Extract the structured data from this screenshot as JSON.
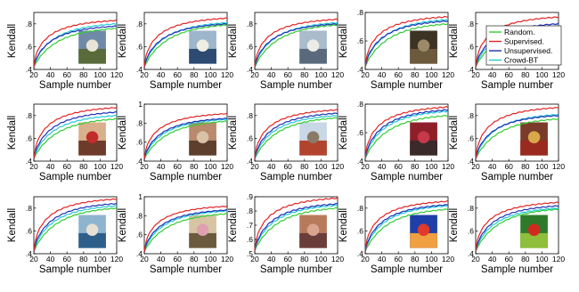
{
  "figure": {
    "legend_entries": [
      {
        "name": "Random.",
        "color": "#33cc33"
      },
      {
        "name": "Supervised.",
        "color": "#e32424"
      },
      {
        "name": "Unsupervised.",
        "color": "#1f2fb8"
      },
      {
        "name": "Crowd-BT",
        "color": "#22c9d6"
      }
    ]
  },
  "chart_data": [
    {
      "type": "line",
      "xlabel": "Sample number",
      "ylabel": "Kendall",
      "xlim": [
        20,
        120
      ],
      "ylim": [
        0.4,
        0.9
      ],
      "xticks": [
        20,
        40,
        60,
        80,
        100,
        120
      ],
      "yticks": [
        0.4,
        0.6,
        0.8
      ],
      "thumbnail": "lighthouse",
      "endpoints": {
        "Random.": 0.76,
        "Supervised.": 0.83,
        "Unsupervised.": 0.78,
        "Crowd-BT": 0.8
      }
    },
    {
      "type": "line",
      "xlabel": "Sample number",
      "ylabel": "Kendall",
      "xlim": [
        20,
        120
      ],
      "ylim": [
        0.4,
        0.9
      ],
      "xticks": [
        20,
        40,
        60,
        80,
        100,
        120
      ],
      "yticks": [
        0.4,
        0.6,
        0.8
      ],
      "thumbnail": "sailboats",
      "endpoints": {
        "Random.": 0.79,
        "Supervised.": 0.85,
        "Unsupervised.": 0.8,
        "Crowd-BT": 0.81
      }
    },
    {
      "type": "line",
      "xlabel": "Sample number",
      "ylabel": "Kendall",
      "xlim": [
        20,
        120
      ],
      "ylim": [
        0.4,
        0.9
      ],
      "xticks": [
        20,
        40,
        60,
        80,
        100,
        120
      ],
      "yticks": [
        0.4,
        0.6,
        0.8
      ],
      "thumbnail": "sailboat",
      "endpoints": {
        "Random.": 0.79,
        "Supervised.": 0.84,
        "Unsupervised.": 0.8,
        "Crowd-BT": 0.81
      }
    },
    {
      "type": "line",
      "xlabel": "Sample number",
      "ylabel": "Kendall",
      "xlim": [
        20,
        120
      ],
      "ylim": [
        0.4,
        0.8
      ],
      "xticks": [
        20,
        40,
        60,
        80,
        100,
        120
      ],
      "yticks": [
        0.4,
        0.6,
        0.8
      ],
      "thumbnail": "statue",
      "endpoints": {
        "Random.": 0.72,
        "Supervised.": 0.77,
        "Unsupervised.": 0.74,
        "Crowd-BT": 0.75
      }
    },
    {
      "type": "line",
      "xlabel": "Sample number",
      "ylabel": "Kendall",
      "xlim": [
        20,
        120
      ],
      "ylim": [
        0.4,
        0.9
      ],
      "xticks": [
        20,
        40,
        60,
        80,
        100,
        120
      ],
      "yticks": [
        0.4,
        0.6,
        0.8
      ],
      "thumbnail": "painting",
      "endpoints": {
        "Random.": 0.77,
        "Supervised.": 0.86,
        "Unsupervised.": 0.8,
        "Crowd-BT": 0.78
      }
    },
    {
      "type": "line",
      "xlabel": "Sample number",
      "ylabel": "Kendall",
      "xlim": [
        20,
        120
      ],
      "ylim": [
        0.4,
        0.9
      ],
      "xticks": [
        20,
        40,
        60,
        80,
        100,
        120
      ],
      "yticks": [
        0.4,
        0.6,
        0.8
      ],
      "thumbnail": "girl in red",
      "endpoints": {
        "Random.": 0.77,
        "Supervised.": 0.87,
        "Unsupervised.": 0.83,
        "Crowd-BT": 0.8
      }
    },
    {
      "type": "line",
      "xlabel": "Sample number",
      "ylabel": "Kendall",
      "xlim": [
        20,
        120
      ],
      "ylim": [
        0.4,
        1
      ],
      "xticks": [
        20,
        40,
        60,
        80,
        100,
        120
      ],
      "yticks": [
        0.4,
        0.6,
        0.8,
        1
      ],
      "thumbnail": "woman seated",
      "endpoints": {
        "Random.": 0.82,
        "Supervised.": 0.9,
        "Unsupervised.": 0.85,
        "Crowd-BT": 0.84
      }
    },
    {
      "type": "line",
      "xlabel": "Sample number",
      "ylabel": "Kendall",
      "xlim": [
        20,
        120
      ],
      "ylim": [
        0.4,
        0.9
      ],
      "xticks": [
        20,
        40,
        60,
        80,
        100,
        120
      ],
      "yticks": [
        0.4,
        0.6,
        0.8
      ],
      "thumbnail": "boats in harbor",
      "endpoints": {
        "Random.": 0.78,
        "Supervised.": 0.85,
        "Unsupervised.": 0.82,
        "Crowd-BT": 0.8
      }
    },
    {
      "type": "line",
      "xlabel": "Sample number",
      "ylabel": "Kendall",
      "xlim": [
        20,
        120
      ],
      "ylim": [
        0.4,
        0.8
      ],
      "xticks": [
        20,
        40,
        60,
        80,
        100,
        120
      ],
      "yticks": [
        0.4,
        0.6,
        0.8
      ],
      "thumbnail": "person in red room",
      "endpoints": {
        "Random.": 0.72,
        "Supervised.": 0.78,
        "Unsupervised.": 0.76,
        "Crowd-BT": 0.75
      }
    },
    {
      "type": "line",
      "xlabel": "Sample number",
      "ylabel": "Kendall",
      "xlim": [
        20,
        120
      ],
      "ylim": [
        0.4,
        0.9
      ],
      "xticks": [
        20,
        40,
        60,
        80,
        100,
        120
      ],
      "yticks": [
        0.4,
        0.6,
        0.8
      ],
      "thumbnail": "fruit bowl",
      "endpoints": {
        "Random.": 0.77,
        "Supervised.": 0.87,
        "Unsupervised.": 0.8,
        "Crowd-BT": 0.81
      }
    },
    {
      "type": "line",
      "xlabel": "Sample number",
      "ylabel": "Kendall",
      "xlim": [
        20,
        120
      ],
      "ylim": [
        0.4,
        0.9
      ],
      "xticks": [
        20,
        40,
        60,
        80,
        100,
        120
      ],
      "yticks": [
        0.4,
        0.6,
        0.8
      ],
      "thumbnail": "house and car",
      "endpoints": {
        "Random.": 0.8,
        "Supervised.": 0.88,
        "Unsupervised.": 0.84,
        "Crowd-BT": 0.82
      }
    },
    {
      "type": "line",
      "xlabel": "Sample number",
      "ylabel": "Kendall",
      "xlim": [
        20,
        120
      ],
      "ylim": [
        0.4,
        1
      ],
      "xticks": [
        20,
        40,
        60,
        80,
        100,
        120
      ],
      "yticks": [
        0.4,
        0.6,
        0.8,
        1
      ],
      "thumbnail": "children",
      "endpoints": {
        "Random.": 0.82,
        "Supervised.": 0.9,
        "Unsupervised.": 0.86,
        "Crowd-BT": 0.85
      }
    },
    {
      "type": "line",
      "xlabel": "Sample number",
      "ylabel": "Kendall",
      "xlim": [
        20,
        120
      ],
      "ylim": [
        0.5,
        0.9
      ],
      "xticks": [
        20,
        40,
        60,
        80,
        100,
        120
      ],
      "yticks": [
        0.5,
        0.6,
        0.7,
        0.8,
        0.9
      ],
      "thumbnail": "portrait with hat",
      "endpoints": {
        "Random.": 0.82,
        "Supervised.": 0.89,
        "Unsupervised.": 0.85,
        "Crowd-BT": 0.84
      }
    },
    {
      "type": "line",
      "xlabel": "Sample number",
      "ylabel": "Kendall",
      "xlim": [
        20,
        120
      ],
      "ylim": [
        0.4,
        0.9
      ],
      "xticks": [
        20,
        40,
        60,
        80,
        100,
        120
      ],
      "yticks": [
        0.4,
        0.6,
        0.8
      ],
      "thumbnail": "mandrill",
      "endpoints": {
        "Random.": 0.79,
        "Supervised.": 0.86,
        "Unsupervised.": 0.83,
        "Crowd-BT": 0.82
      }
    },
    {
      "type": "line",
      "xlabel": "Sample number",
      "ylabel": "Kendall",
      "xlim": [
        20,
        120
      ],
      "ylim": [
        0.4,
        0.9
      ],
      "xticks": [
        20,
        40,
        60,
        80,
        100,
        120
      ],
      "yticks": [
        0.4,
        0.6,
        0.8
      ],
      "thumbnail": "peppers",
      "endpoints": {
        "Random.": 0.79,
        "Supervised.": 0.85,
        "Unsupervised.": 0.82,
        "Crowd-BT": 0.8
      }
    }
  ]
}
